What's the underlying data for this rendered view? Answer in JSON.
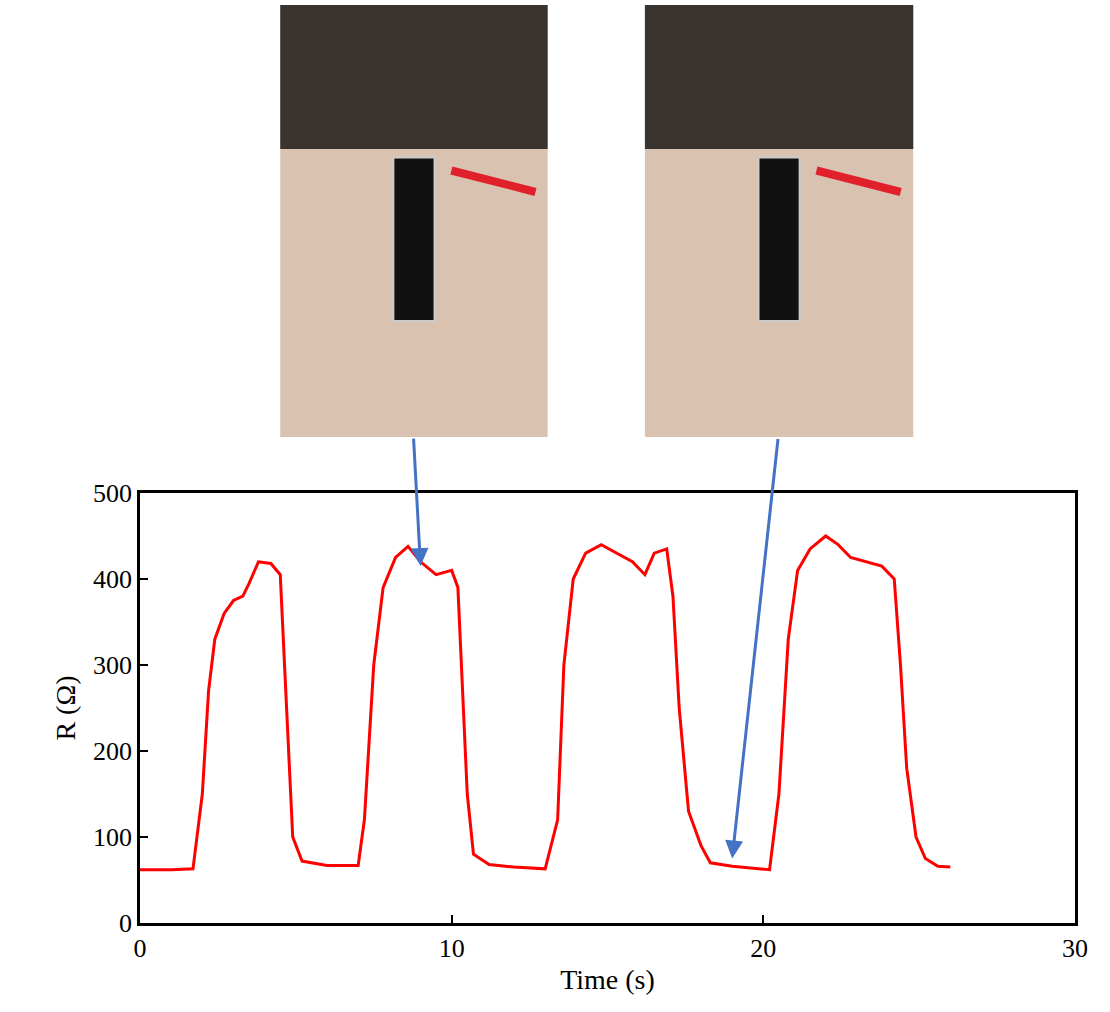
{
  "chart_data": {
    "type": "line",
    "x_label": "Time (s)",
    "y_label": "R (Ω)",
    "xlim": [
      0,
      30
    ],
    "xticks": [
      0,
      10,
      20,
      30
    ],
    "ylim": [
      0,
      500
    ],
    "yticks": [
      0,
      100,
      200,
      300,
      400,
      500
    ],
    "grid": false,
    "series": [
      {
        "name": "R",
        "color": "#ff0000",
        "line_style": "solid",
        "x": [
          0,
          1,
          1.7,
          2.0,
          2.2,
          2.4,
          2.7,
          3.0,
          3.3,
          3.5,
          3.8,
          4.2,
          4.5,
          4.7,
          4.9,
          5.2,
          6,
          7,
          7.2,
          7.5,
          7.8,
          8.2,
          8.6,
          9.0,
          9.5,
          10.0,
          10.2,
          10.5,
          10.7,
          11.2,
          12,
          13,
          13.4,
          13.6,
          13.9,
          14.3,
          14.8,
          15.3,
          15.8,
          16.2,
          16.5,
          16.9,
          17.1,
          17.3,
          17.6,
          18,
          18.3,
          19,
          20,
          20.2,
          20.5,
          20.8,
          21.1,
          21.5,
          22.0,
          22.4,
          22.8,
          23.3,
          23.8,
          24.2,
          24.4,
          24.6,
          24.9,
          25.2,
          25.6,
          26
        ],
        "values": [
          62,
          62,
          63,
          150,
          270,
          330,
          360,
          375,
          380,
          395,
          420,
          418,
          405,
          250,
          100,
          72,
          67,
          67,
          120,
          300,
          390,
          425,
          438,
          420,
          405,
          410,
          390,
          150,
          80,
          68,
          65,
          63,
          120,
          300,
          400,
          430,
          440,
          430,
          420,
          405,
          430,
          435,
          380,
          250,
          130,
          90,
          70,
          66,
          63,
          62,
          150,
          330,
          410,
          435,
          450,
          440,
          425,
          420,
          415,
          400,
          300,
          180,
          100,
          75,
          66,
          65
        ]
      }
    ],
    "arrows": [
      {
        "x": 9.0,
        "y": 415
      },
      {
        "x": 19.0,
        "y": 75
      }
    ]
  }
}
